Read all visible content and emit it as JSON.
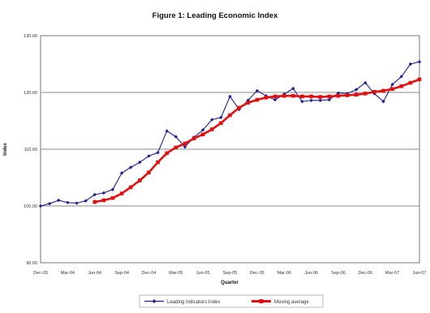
{
  "chart_data": {
    "type": "line",
    "title": "Figure 1:  Leading Economic Index",
    "xlabel": "Quarter",
    "ylabel": "Index",
    "ylim": [
      90,
      130
    ],
    "y_ticks": [
      "90.00",
      "100.00",
      "110.00",
      "120.00",
      "130.00"
    ],
    "x_tick_labels": [
      "Dec-03",
      "Mar-04",
      "Jun-04",
      "Sep-04",
      "Dec-04",
      "Mar-05",
      "Jun-05",
      "Sep-05",
      "Dec-05",
      "Mar-06",
      "Jun-06",
      "Sep-06",
      "Dec-06",
      "Mar-07",
      "Jun-07"
    ],
    "x_tick_month_offsets": [
      0,
      3,
      6,
      9,
      12,
      15,
      18,
      21,
      24,
      27,
      30,
      33,
      36,
      39,
      42
    ],
    "x_range_months": [
      0,
      42
    ],
    "grid": true,
    "legend_placement": "bottom",
    "series": [
      {
        "name": "Leading Indicators Index",
        "color": "#1f1f8f",
        "marker": "diamond",
        "x_months": [
          0,
          1,
          2,
          3,
          4,
          5,
          6,
          7,
          8,
          9,
          10,
          11,
          12,
          13,
          14,
          15,
          16,
          17,
          18,
          19,
          20,
          21,
          22,
          23,
          24,
          25,
          26,
          27,
          28,
          29,
          30,
          31,
          32,
          33,
          34,
          35,
          36,
          37,
          38,
          39,
          40,
          41,
          42
        ],
        "values": [
          100.0,
          100.4,
          101.0,
          100.6,
          100.5,
          100.9,
          102.0,
          102.3,
          102.9,
          105.8,
          106.8,
          107.7,
          108.8,
          109.4,
          113.2,
          112.2,
          110.4,
          112.1,
          113.4,
          115.2,
          115.6,
          119.3,
          117.0,
          118.6,
          120.3,
          119.4,
          118.7,
          119.7,
          120.7,
          118.4,
          118.6,
          118.6,
          118.7,
          119.9,
          119.8,
          120.5,
          121.7,
          119.8,
          118.4,
          121.4,
          122.8,
          125.0,
          125.4
        ]
      },
      {
        "name": "Moving average",
        "color": "#e01010",
        "marker": "square",
        "x_months": [
          6,
          7,
          8,
          9,
          10,
          11,
          12,
          13,
          14,
          15,
          16,
          17,
          18,
          19,
          20,
          21,
          22,
          23,
          24,
          25,
          26,
          27,
          28,
          29,
          30,
          31,
          32,
          33,
          34,
          35,
          36,
          37,
          38,
          39,
          40,
          41,
          42
        ],
        "values": [
          100.7,
          101.0,
          101.4,
          102.2,
          103.3,
          104.5,
          105.9,
          107.7,
          109.3,
          110.3,
          111.0,
          111.9,
          112.6,
          113.5,
          114.6,
          116.0,
          117.3,
          118.2,
          118.7,
          119.1,
          119.3,
          119.4,
          119.4,
          119.3,
          119.3,
          119.2,
          119.3,
          119.4,
          119.5,
          119.6,
          119.8,
          120.1,
          120.3,
          120.6,
          121.1,
          121.7,
          122.3
        ]
      }
    ]
  }
}
